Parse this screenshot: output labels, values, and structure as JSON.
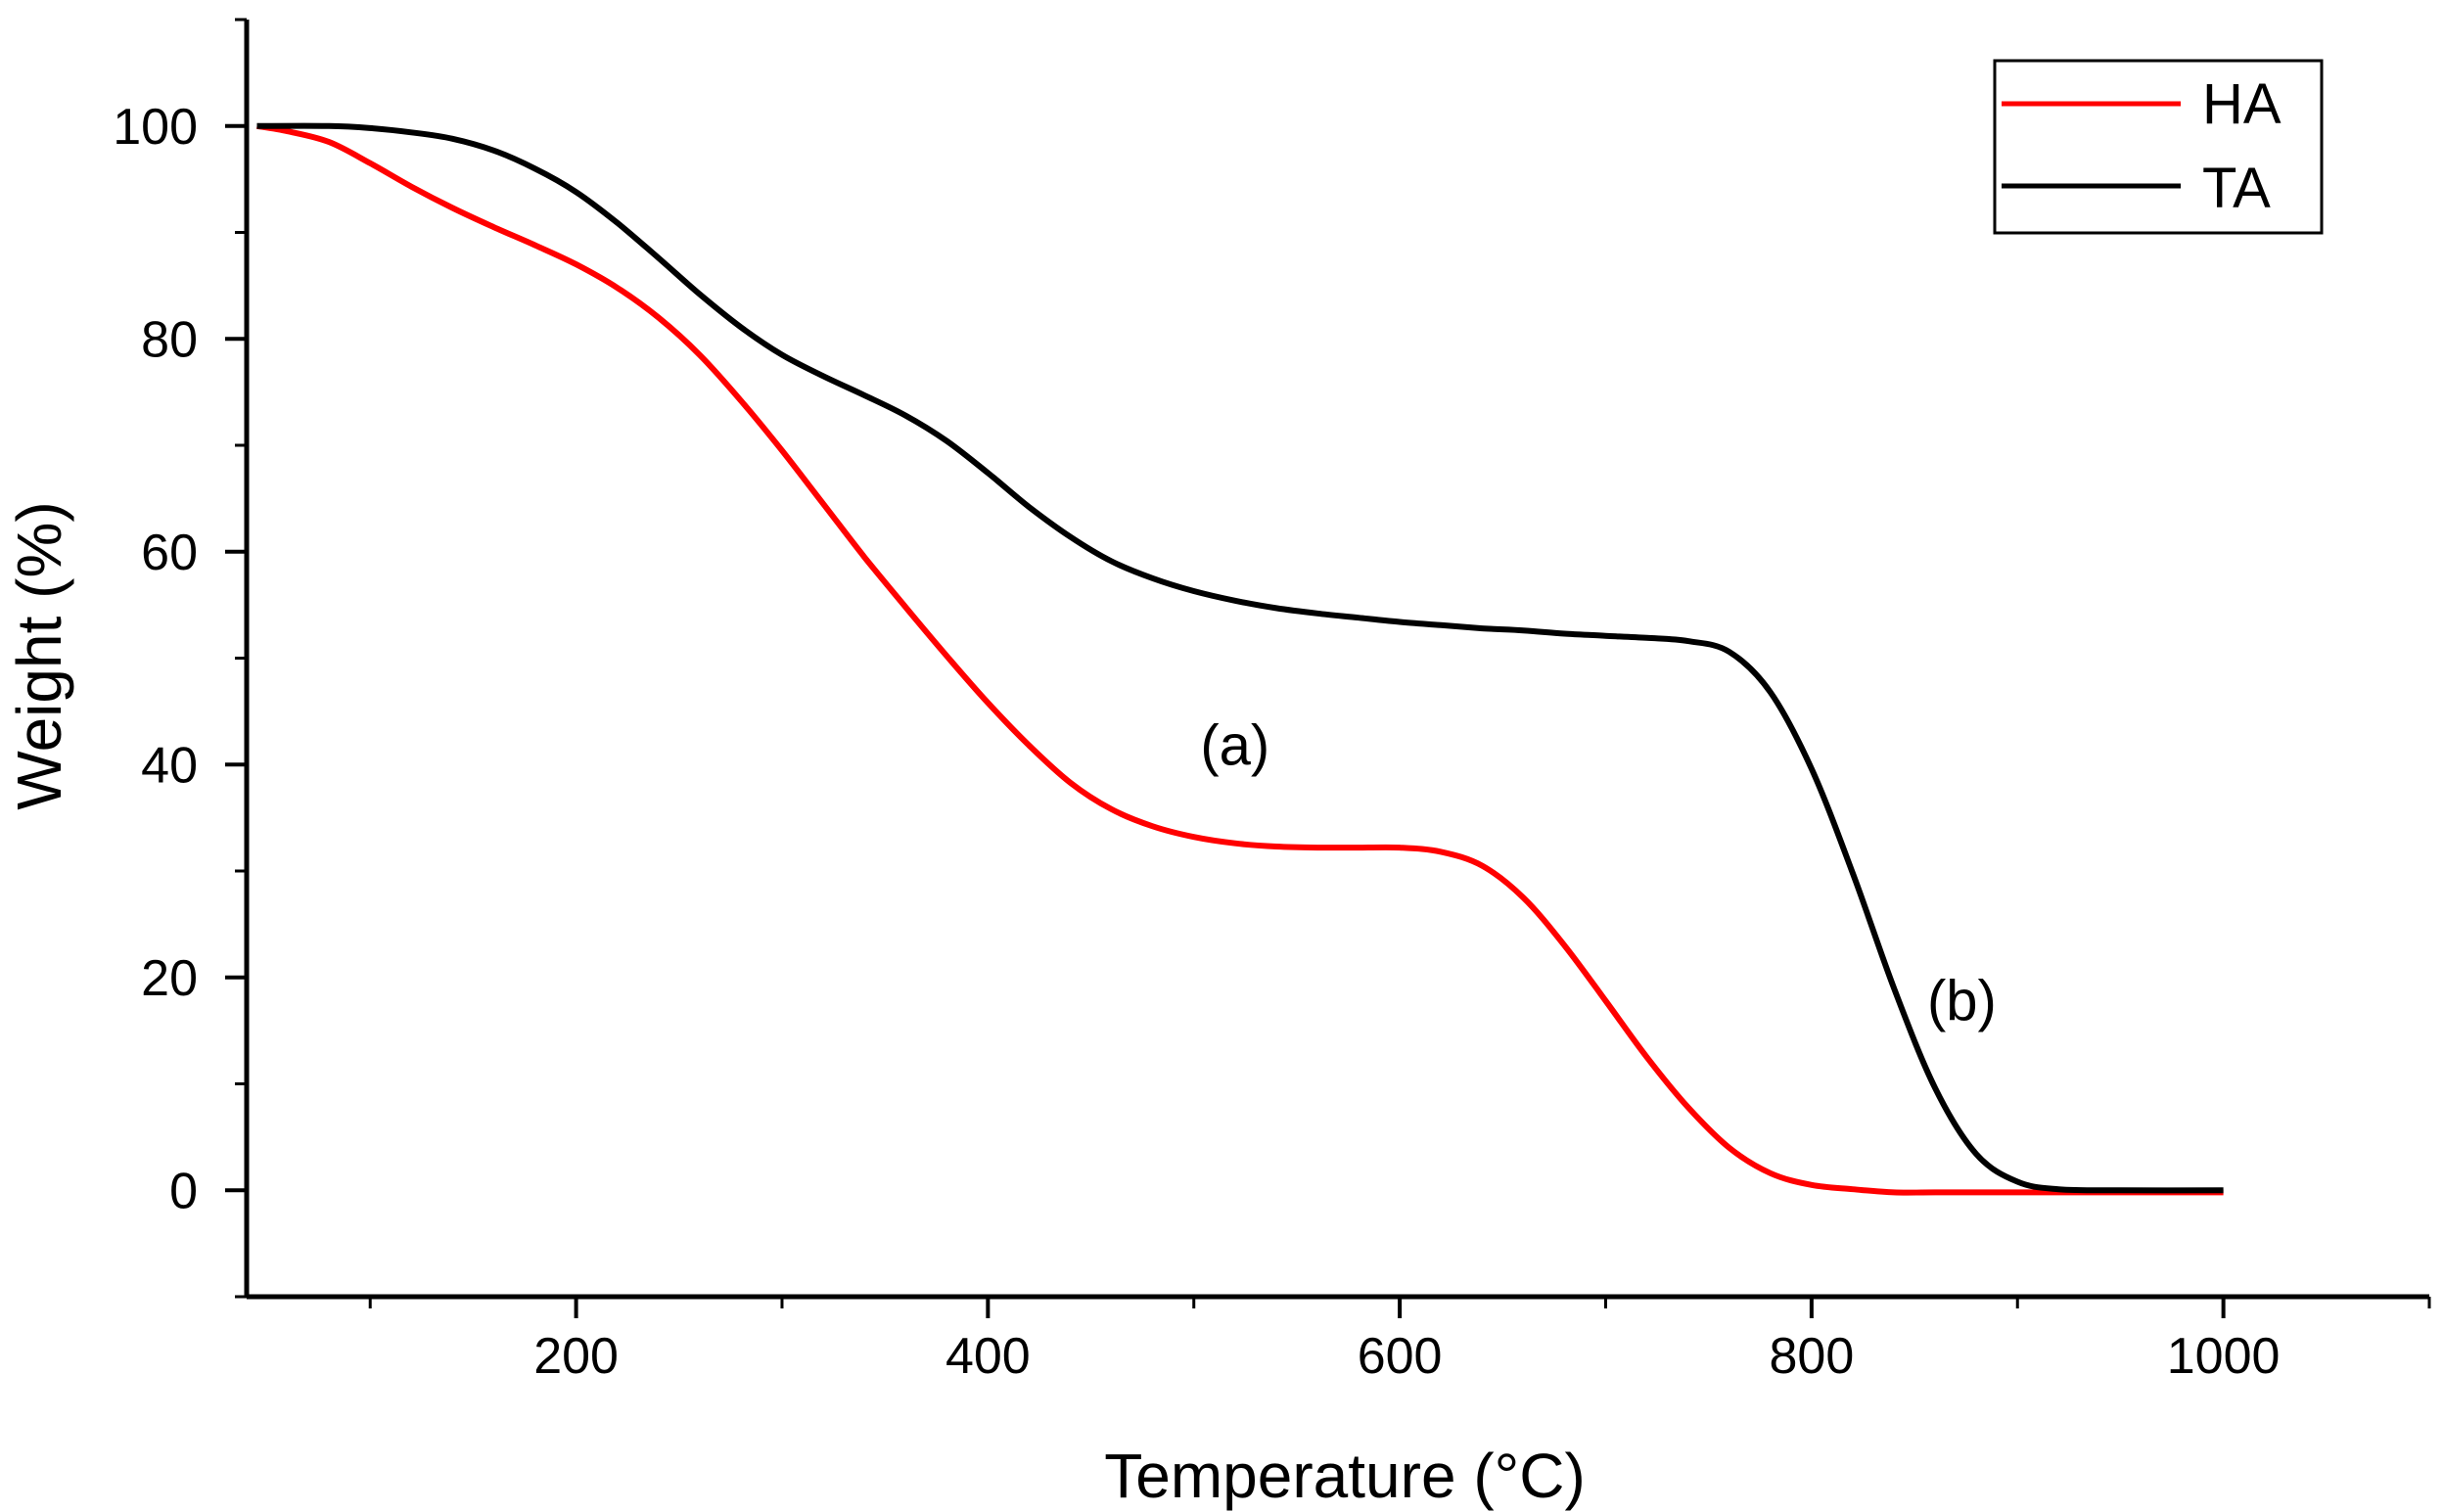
{
  "chart_data": {
    "type": "line",
    "title": "",
    "xlabel": "Temperature (°C)",
    "ylabel": "Weight (%)",
    "xlim": [
      40,
      1100
    ],
    "ylim": [
      -10,
      110
    ],
    "xticks": [
      200,
      400,
      600,
      800,
      1000
    ],
    "yticks": [
      0,
      20,
      40,
      60,
      80,
      100
    ],
    "x_minor_ticks": [
      100,
      300,
      500,
      700,
      900,
      1100
    ],
    "y_minor_ticks": [
      -10,
      10,
      30,
      50,
      70,
      90,
      110
    ],
    "grid": false,
    "legend_position": "top-right",
    "series": [
      {
        "name": "HA",
        "color": "#ff0000",
        "x": [
          45,
          60,
          80,
          100,
          120,
          140,
          160,
          180,
          200,
          220,
          240,
          260,
          280,
          300,
          320,
          340,
          360,
          380,
          400,
          420,
          440,
          460,
          480,
          500,
          520,
          540,
          560,
          580,
          600,
          620,
          640,
          660,
          680,
          700,
          720,
          740,
          760,
          780,
          800,
          820,
          840,
          860,
          900,
          950,
          1000
        ],
        "y": [
          100,
          99.5,
          98.5,
          96.5,
          94.3,
          92.3,
          90.5,
          88.8,
          87.0,
          84.8,
          82.0,
          78.5,
          74.2,
          69.5,
          64.5,
          59.5,
          54.8,
          50.2,
          45.8,
          41.8,
          38.3,
          35.8,
          34.2,
          33.2,
          32.6,
          32.3,
          32.2,
          32.2,
          32.2,
          31.8,
          30.5,
          27.5,
          23.0,
          17.8,
          12.5,
          7.8,
          4.0,
          1.6,
          0.5,
          0.1,
          -0.2,
          -0.2,
          -0.2,
          -0.2,
          -0.2
        ]
      },
      {
        "name": "TA",
        "color": "#000000",
        "x": [
          45,
          80,
          100,
          120,
          140,
          160,
          180,
          200,
          220,
          240,
          260,
          280,
          300,
          320,
          340,
          360,
          380,
          400,
          420,
          440,
          460,
          480,
          500,
          520,
          540,
          560,
          580,
          600,
          620,
          640,
          660,
          680,
          700,
          720,
          740,
          760,
          780,
          800,
          820,
          840,
          860,
          880,
          900,
          920,
          950,
          1000
        ],
        "y": [
          100,
          100,
          99.8,
          99.4,
          98.8,
          97.7,
          96.0,
          93.8,
          90.9,
          87.6,
          84.2,
          81.1,
          78.5,
          76.5,
          74.7,
          72.8,
          70.4,
          67.4,
          64.2,
          61.4,
          59.1,
          57.5,
          56.3,
          55.4,
          54.7,
          54.2,
          53.8,
          53.4,
          53.1,
          52.8,
          52.6,
          52.3,
          52.1,
          51.9,
          51.6,
          50.6,
          46.8,
          39.6,
          29.8,
          19.0,
          9.6,
          3.4,
          0.8,
          0.1,
          0.0,
          0.0
        ]
      }
    ],
    "annotations": [
      {
        "text": "(a)",
        "x": 520,
        "y": 40
      },
      {
        "text": "(b)",
        "x": 873,
        "y": 16
      }
    ]
  }
}
